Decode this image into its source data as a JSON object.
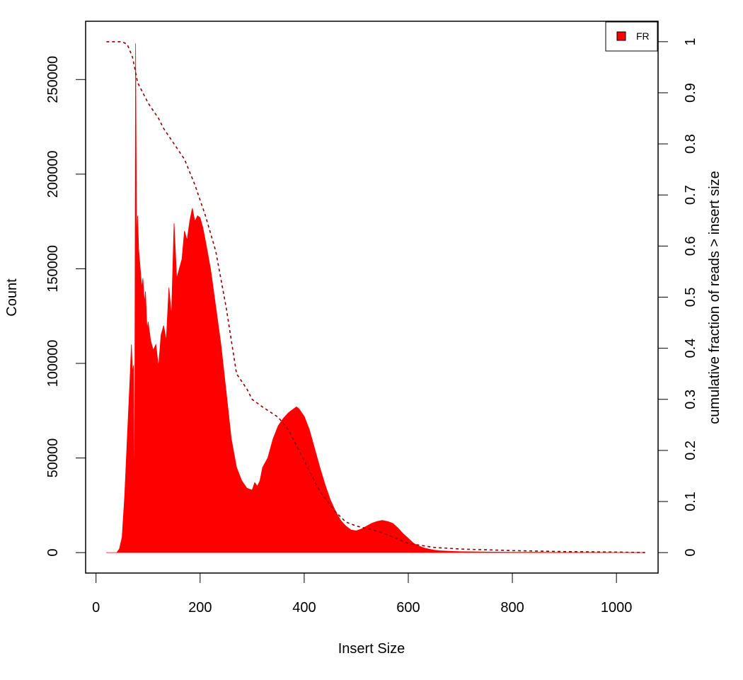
{
  "chart_data": {
    "type": "area",
    "xlabel": "Insert Size",
    "ylabel": "Count",
    "y2label": "cumulative fraction of reads > insert size",
    "xlim": [
      -20,
      1080
    ],
    "ylim": [
      -10800,
      280800
    ],
    "y2lim": [
      -0.04,
      1.04
    ],
    "x_ticks": [
      0,
      200,
      400,
      600,
      800,
      1000
    ],
    "y_ticks": [
      0,
      50000,
      100000,
      150000,
      200000,
      250000
    ],
    "y_tick_labels": [
      "0",
      "50000",
      "100000",
      "150000",
      "200000",
      "250000"
    ],
    "y2_ticks": [
      0,
      0.1,
      0.2,
      0.3,
      0.4,
      0.5,
      0.6,
      0.7,
      0.8,
      0.9,
      1
    ],
    "y2_tick_labels": [
      "0",
      "0.1",
      "0.2",
      "0.3",
      "0.4",
      "0.5",
      "0.6",
      "0.7",
      "0.8",
      "0.9",
      "1"
    ],
    "legend": {
      "position": "top-right",
      "entries": [
        {
          "label": "FR",
          "color": "#ff0000"
        }
      ]
    },
    "series": [
      {
        "name": "FR",
        "kind": "histogram",
        "color": "#ff0000",
        "x": [
          20,
          40,
          45,
          50,
          55,
          60,
          65,
          68,
          70,
          72,
          74,
          76,
          78,
          80,
          82,
          85,
          88,
          90,
          93,
          95,
          98,
          100,
          105,
          110,
          115,
          120,
          125,
          130,
          135,
          140,
          145,
          150,
          155,
          160,
          165,
          170,
          175,
          180,
          185,
          190,
          195,
          200,
          205,
          210,
          220,
          230,
          240,
          250,
          260,
          270,
          280,
          290,
          300,
          305,
          310,
          315,
          320,
          330,
          340,
          350,
          360,
          370,
          380,
          385,
          390,
          400,
          410,
          420,
          430,
          440,
          450,
          460,
          470,
          480,
          490,
          500,
          510,
          520,
          530,
          540,
          550,
          560,
          570,
          580,
          590,
          600,
          610,
          620,
          630,
          640,
          650,
          660,
          680,
          700,
          750,
          800,
          850,
          900,
          950,
          1000,
          1055
        ],
        "y": [
          0,
          0,
          2000,
          8000,
          30000,
          60000,
          90000,
          110000,
          95000,
          99000,
          13000,
          269000,
          165000,
          178000,
          160000,
          150000,
          140000,
          145000,
          132000,
          138000,
          118000,
          122000,
          112000,
          107000,
          110000,
          98000,
          115000,
          120000,
          112000,
          140000,
          125000,
          174000,
          145000,
          150000,
          155000,
          170000,
          165000,
          175000,
          182000,
          175000,
          178000,
          177000,
          172000,
          165000,
          150000,
          130000,
          110000,
          85000,
          60000,
          45000,
          38000,
          34000,
          33000,
          37000,
          35000,
          38000,
          45000,
          50000,
          60000,
          67000,
          71000,
          74000,
          76000,
          77000,
          76000,
          72000,
          65000,
          55000,
          45000,
          36000,
          28000,
          22000,
          17000,
          14000,
          12000,
          11500,
          12500,
          14000,
          15500,
          16500,
          17000,
          16500,
          15500,
          13000,
          10000,
          7500,
          5000,
          3500,
          2500,
          1800,
          1300,
          1000,
          700,
          500,
          300,
          200,
          150,
          100,
          80,
          60,
          50
        ]
      },
      {
        "name": "",
        "kind": "cumulative",
        "axis": "right",
        "color": "#8b0000",
        "x": [
          20,
          50,
          60,
          70,
          80,
          90,
          100,
          110,
          120,
          130,
          150,
          170,
          190,
          200,
          210,
          230,
          250,
          270,
          290,
          300,
          320,
          350,
          370,
          400,
          430,
          460,
          480,
          500,
          530,
          560,
          600,
          650,
          700,
          800,
          900,
          1000,
          1055
        ],
        "y": [
          1,
          1,
          0.995,
          0.97,
          0.92,
          0.9,
          0.88,
          0.865,
          0.85,
          0.83,
          0.8,
          0.77,
          0.72,
          0.69,
          0.66,
          0.59,
          0.48,
          0.35,
          0.32,
          0.3,
          0.285,
          0.265,
          0.24,
          0.18,
          0.12,
          0.08,
          0.06,
          0.052,
          0.045,
          0.035,
          0.018,
          0.01,
          0.007,
          0.004,
          0.002,
          0.001,
          0
        ]
      }
    ]
  }
}
